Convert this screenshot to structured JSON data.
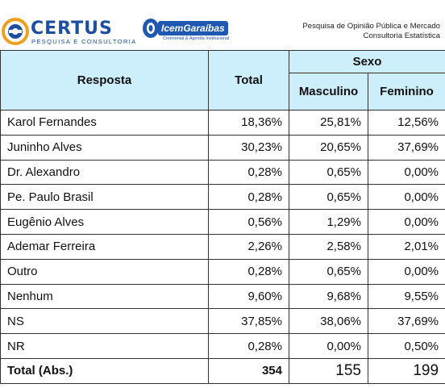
{
  "header": {
    "certus_name": "CERTUS",
    "certus_subtitle": "PESQUISA E CONSULTORIA",
    "icem_name": "IcemGaraíbas",
    "icem_subtitle": "Cerimonial & Agenda Institucional",
    "company_line1": "Pesquisa de Opinião Pública e Mercado",
    "company_line2": "Consultoria Estatística"
  },
  "table": {
    "col_response": "Resposta",
    "col_total": "Total",
    "group_sexo": "Sexo",
    "col_masculino": "Masculino",
    "col_feminino": "Feminino",
    "rows": [
      {
        "label": "Karol Fernandes",
        "total": "18,36%",
        "masc": "25,81%",
        "fem": "12,56%"
      },
      {
        "label": "Juninho Alves",
        "total": "30,23%",
        "masc": "20,65%",
        "fem": "37,69%"
      },
      {
        "label": "Dr. Alexandro",
        "total": "0,28%",
        "masc": "0,65%",
        "fem": "0,00%"
      },
      {
        "label": "Pe. Paulo Brasil",
        "total": "0,28%",
        "masc": "0,65%",
        "fem": "0,00%"
      },
      {
        "label": "Eugênio Alves",
        "total": "0,56%",
        "masc": "1,29%",
        "fem": "0,00%"
      },
      {
        "label": "Ademar Ferreira",
        "total": "2,26%",
        "masc": "2,58%",
        "fem": "2,01%"
      },
      {
        "label": "Outro",
        "total": "0,28%",
        "masc": "0,65%",
        "fem": "0,00%"
      },
      {
        "label": "Nenhum",
        "total": "9,60%",
        "masc": "9,68%",
        "fem": "9,55%"
      },
      {
        "label": "NS",
        "total": "37,85%",
        "masc": "38,06%",
        "fem": "37,69%"
      },
      {
        "label": "NR",
        "total": "0,28%",
        "masc": "0,00%",
        "fem": "0,50%"
      }
    ],
    "total_row": {
      "label": "Total (Abs.)",
      "total": "354",
      "masc": "155",
      "fem": "199"
    }
  }
}
